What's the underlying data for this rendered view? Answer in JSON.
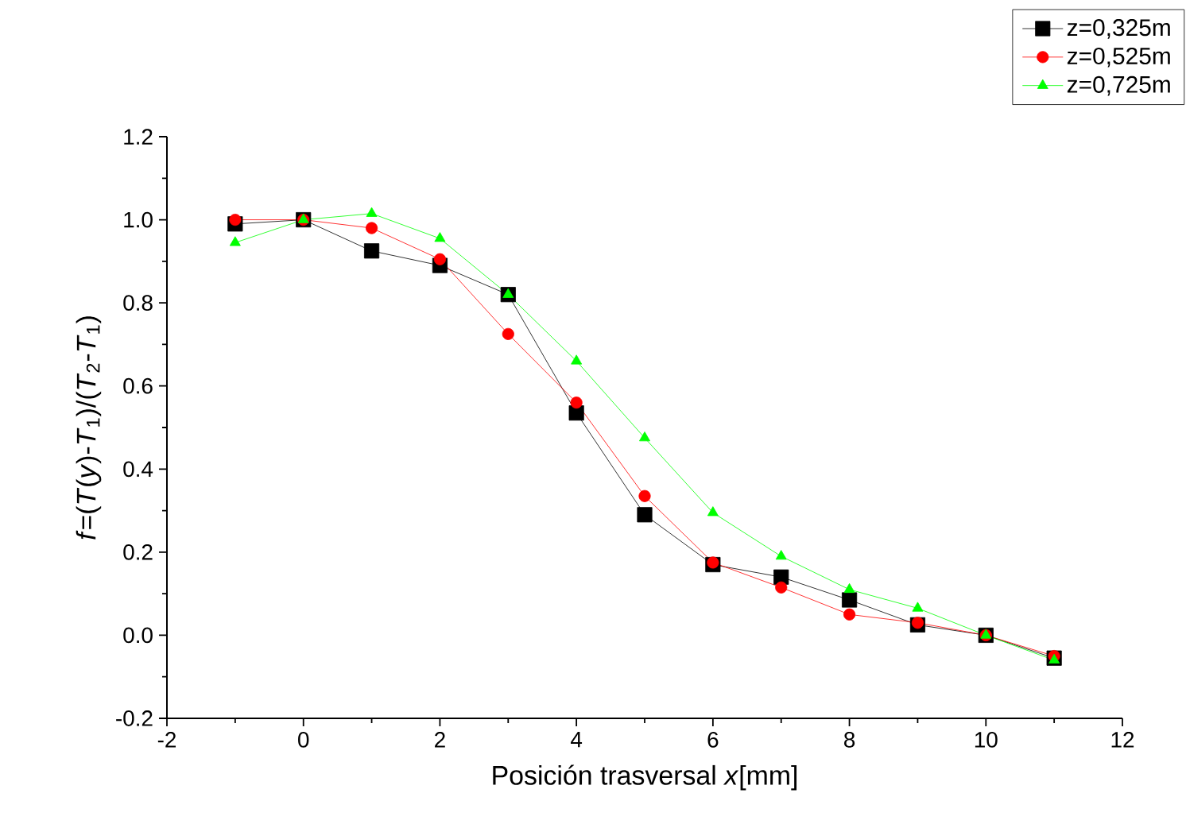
{
  "chart_data": {
    "type": "line",
    "xlabel": "Posición trasversal *x*[mm]",
    "ylabel": "*f*=(*T*(*y*)-*T*$_{1}$)/(*T*$_{2}$-*T*$_{1}$)",
    "x": [
      -1,
      0,
      1,
      2,
      3,
      4,
      5,
      6,
      7,
      8,
      9,
      10,
      11
    ],
    "series": [
      {
        "name": "z=0,325m",
        "color": "#000000",
        "marker": "square",
        "values": [
          0.99,
          1.0,
          0.925,
          0.89,
          0.82,
          0.535,
          0.29,
          0.17,
          0.14,
          0.085,
          0.025,
          0.0,
          -0.055
        ]
      },
      {
        "name": "z=0,525m",
        "color": "#ff0000",
        "marker": "circle",
        "values": [
          1.0,
          1.0,
          0.98,
          0.905,
          0.725,
          0.56,
          0.335,
          0.175,
          0.115,
          0.05,
          0.03,
          0.0,
          -0.05
        ]
      },
      {
        "name": "z=0,725m",
        "color": "#00ff00",
        "marker": "triangle",
        "values": [
          0.945,
          1.0,
          1.015,
          0.955,
          0.82,
          0.66,
          0.475,
          0.295,
          0.19,
          0.11,
          0.065,
          0.0,
          -0.06
        ]
      }
    ],
    "xlim": [
      -2,
      12
    ],
    "xticks": [
      -2,
      0,
      2,
      4,
      6,
      8,
      10,
      12
    ],
    "ylim": [
      -0.2,
      1.2
    ],
    "yticks": [
      {
        "value": -0.2,
        "label": "-0.2"
      },
      {
        "value": 0,
        "label": "0.0"
      },
      {
        "value": 0.2,
        "label": "0.2"
      },
      {
        "value": 0.4,
        "label": "0.4"
      },
      {
        "value": 0.6,
        "label": "0.6"
      },
      {
        "value": 0.8,
        "label": "0.8"
      },
      {
        "value": 1.0,
        "label": "1.0"
      },
      {
        "value": 1.2,
        "label": "1.2"
      }
    ],
    "legend": "top right",
    "grid": false,
    "line_style": "solid"
  }
}
